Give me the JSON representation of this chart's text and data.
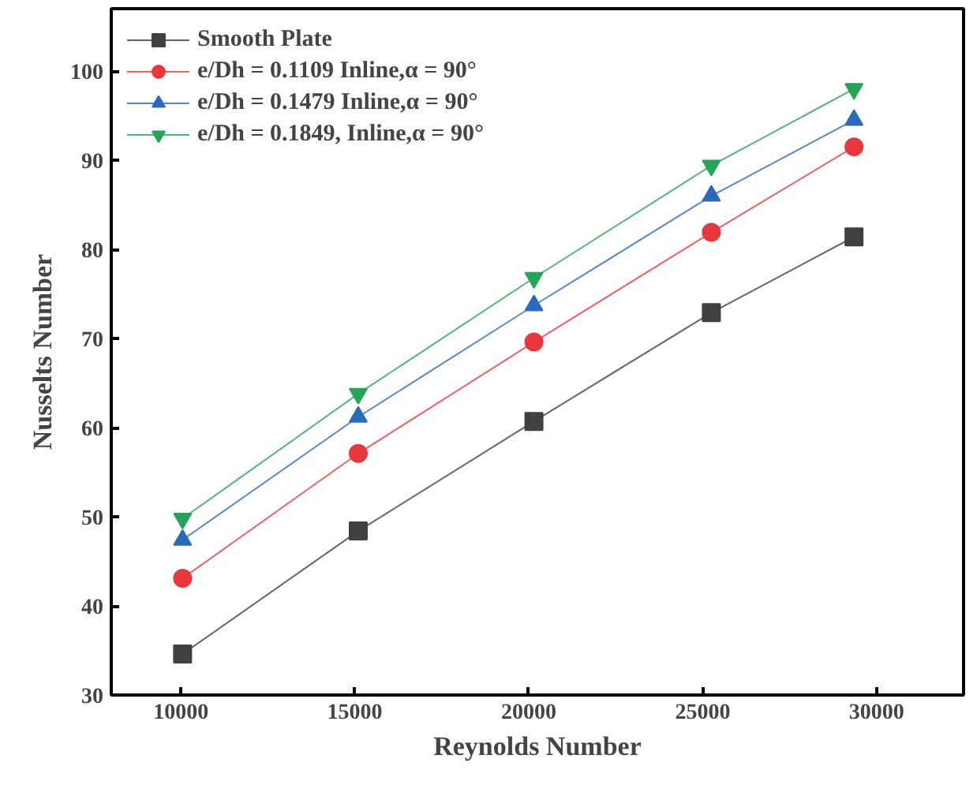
{
  "chart_data": {
    "type": "line",
    "xlabel": "Reynolds Number",
    "ylabel": "Nusselts Number",
    "x": [
      10050,
      15100,
      20150,
      25250,
      29350
    ],
    "series": [
      {
        "name": "Smooth Plate",
        "color": "#404040",
        "marker": "square",
        "values": [
          34.6,
          48.4,
          60.7,
          72.9,
          81.4
        ]
      },
      {
        "name": "e/Dh = 0.1109 Inline,α = 90°",
        "color": "#e8383d",
        "marker": "circle",
        "values": [
          43.1,
          57.1,
          69.6,
          81.9,
          91.5
        ]
      },
      {
        "name": "e/Dh = 0.1479 Inline,α = 90°",
        "color": "#2a6ac0",
        "marker": "triangle",
        "values": [
          47.4,
          61.2,
          73.7,
          86.0,
          94.5
        ]
      },
      {
        "name": "e/Dh = 0.1849, Inline,α = 90°",
        "color": "#27a35a",
        "marker": "triangle",
        "values": [
          49.8,
          63.8,
          76.8,
          89.4,
          98.0
        ]
      }
    ],
    "xlim": [
      8000,
      32500
    ],
    "ylim": [
      30,
      107
    ],
    "xticks": [
      10000,
      15000,
      20000,
      25000,
      30000
    ],
    "yticks": [
      30,
      40,
      50,
      60,
      70,
      80,
      90,
      100
    ],
    "grid": false,
    "legend": "top left",
    "line_style": "solid"
  }
}
